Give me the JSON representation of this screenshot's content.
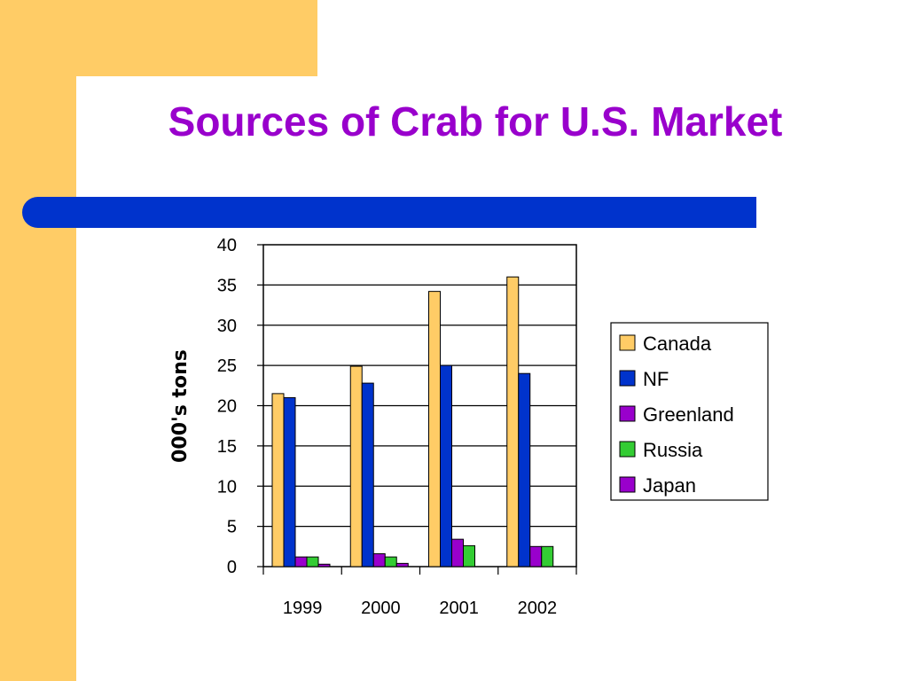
{
  "slide": {
    "title": "Sources of Crab for U.S. Market",
    "colors": {
      "background": "#ffffff",
      "side_band": "#ffcc66",
      "title_text": "#9900cc",
      "title_bar": "#0033cc"
    }
  },
  "chart_data": {
    "type": "bar",
    "title": "",
    "xlabel": "",
    "ylabel": "000's tons",
    "categories": [
      "1999",
      "2000",
      "2001",
      "2002"
    ],
    "ylim": [
      0,
      40
    ],
    "yticks": [
      0,
      5,
      10,
      15,
      20,
      25,
      30,
      35,
      40
    ],
    "grid": true,
    "legend_position": "right",
    "series": [
      {
        "name": "Canada",
        "color": "#ffcc66",
        "values": [
          21.5,
          24.9,
          34.2,
          36.0
        ]
      },
      {
        "name": "NF",
        "color": "#0033cc",
        "values": [
          21.0,
          22.8,
          25.0,
          24.0
        ]
      },
      {
        "name": "Greenland",
        "color": "#9900cc",
        "values": [
          1.2,
          1.6,
          3.4,
          2.5
        ]
      },
      {
        "name": "Russia",
        "color": "#33cc33",
        "values": [
          1.2,
          1.2,
          2.6,
          2.5
        ]
      },
      {
        "name": "Japan",
        "color": "#9900cc",
        "values": [
          0.3,
          0.4,
          0.0,
          0.0
        ]
      }
    ]
  }
}
